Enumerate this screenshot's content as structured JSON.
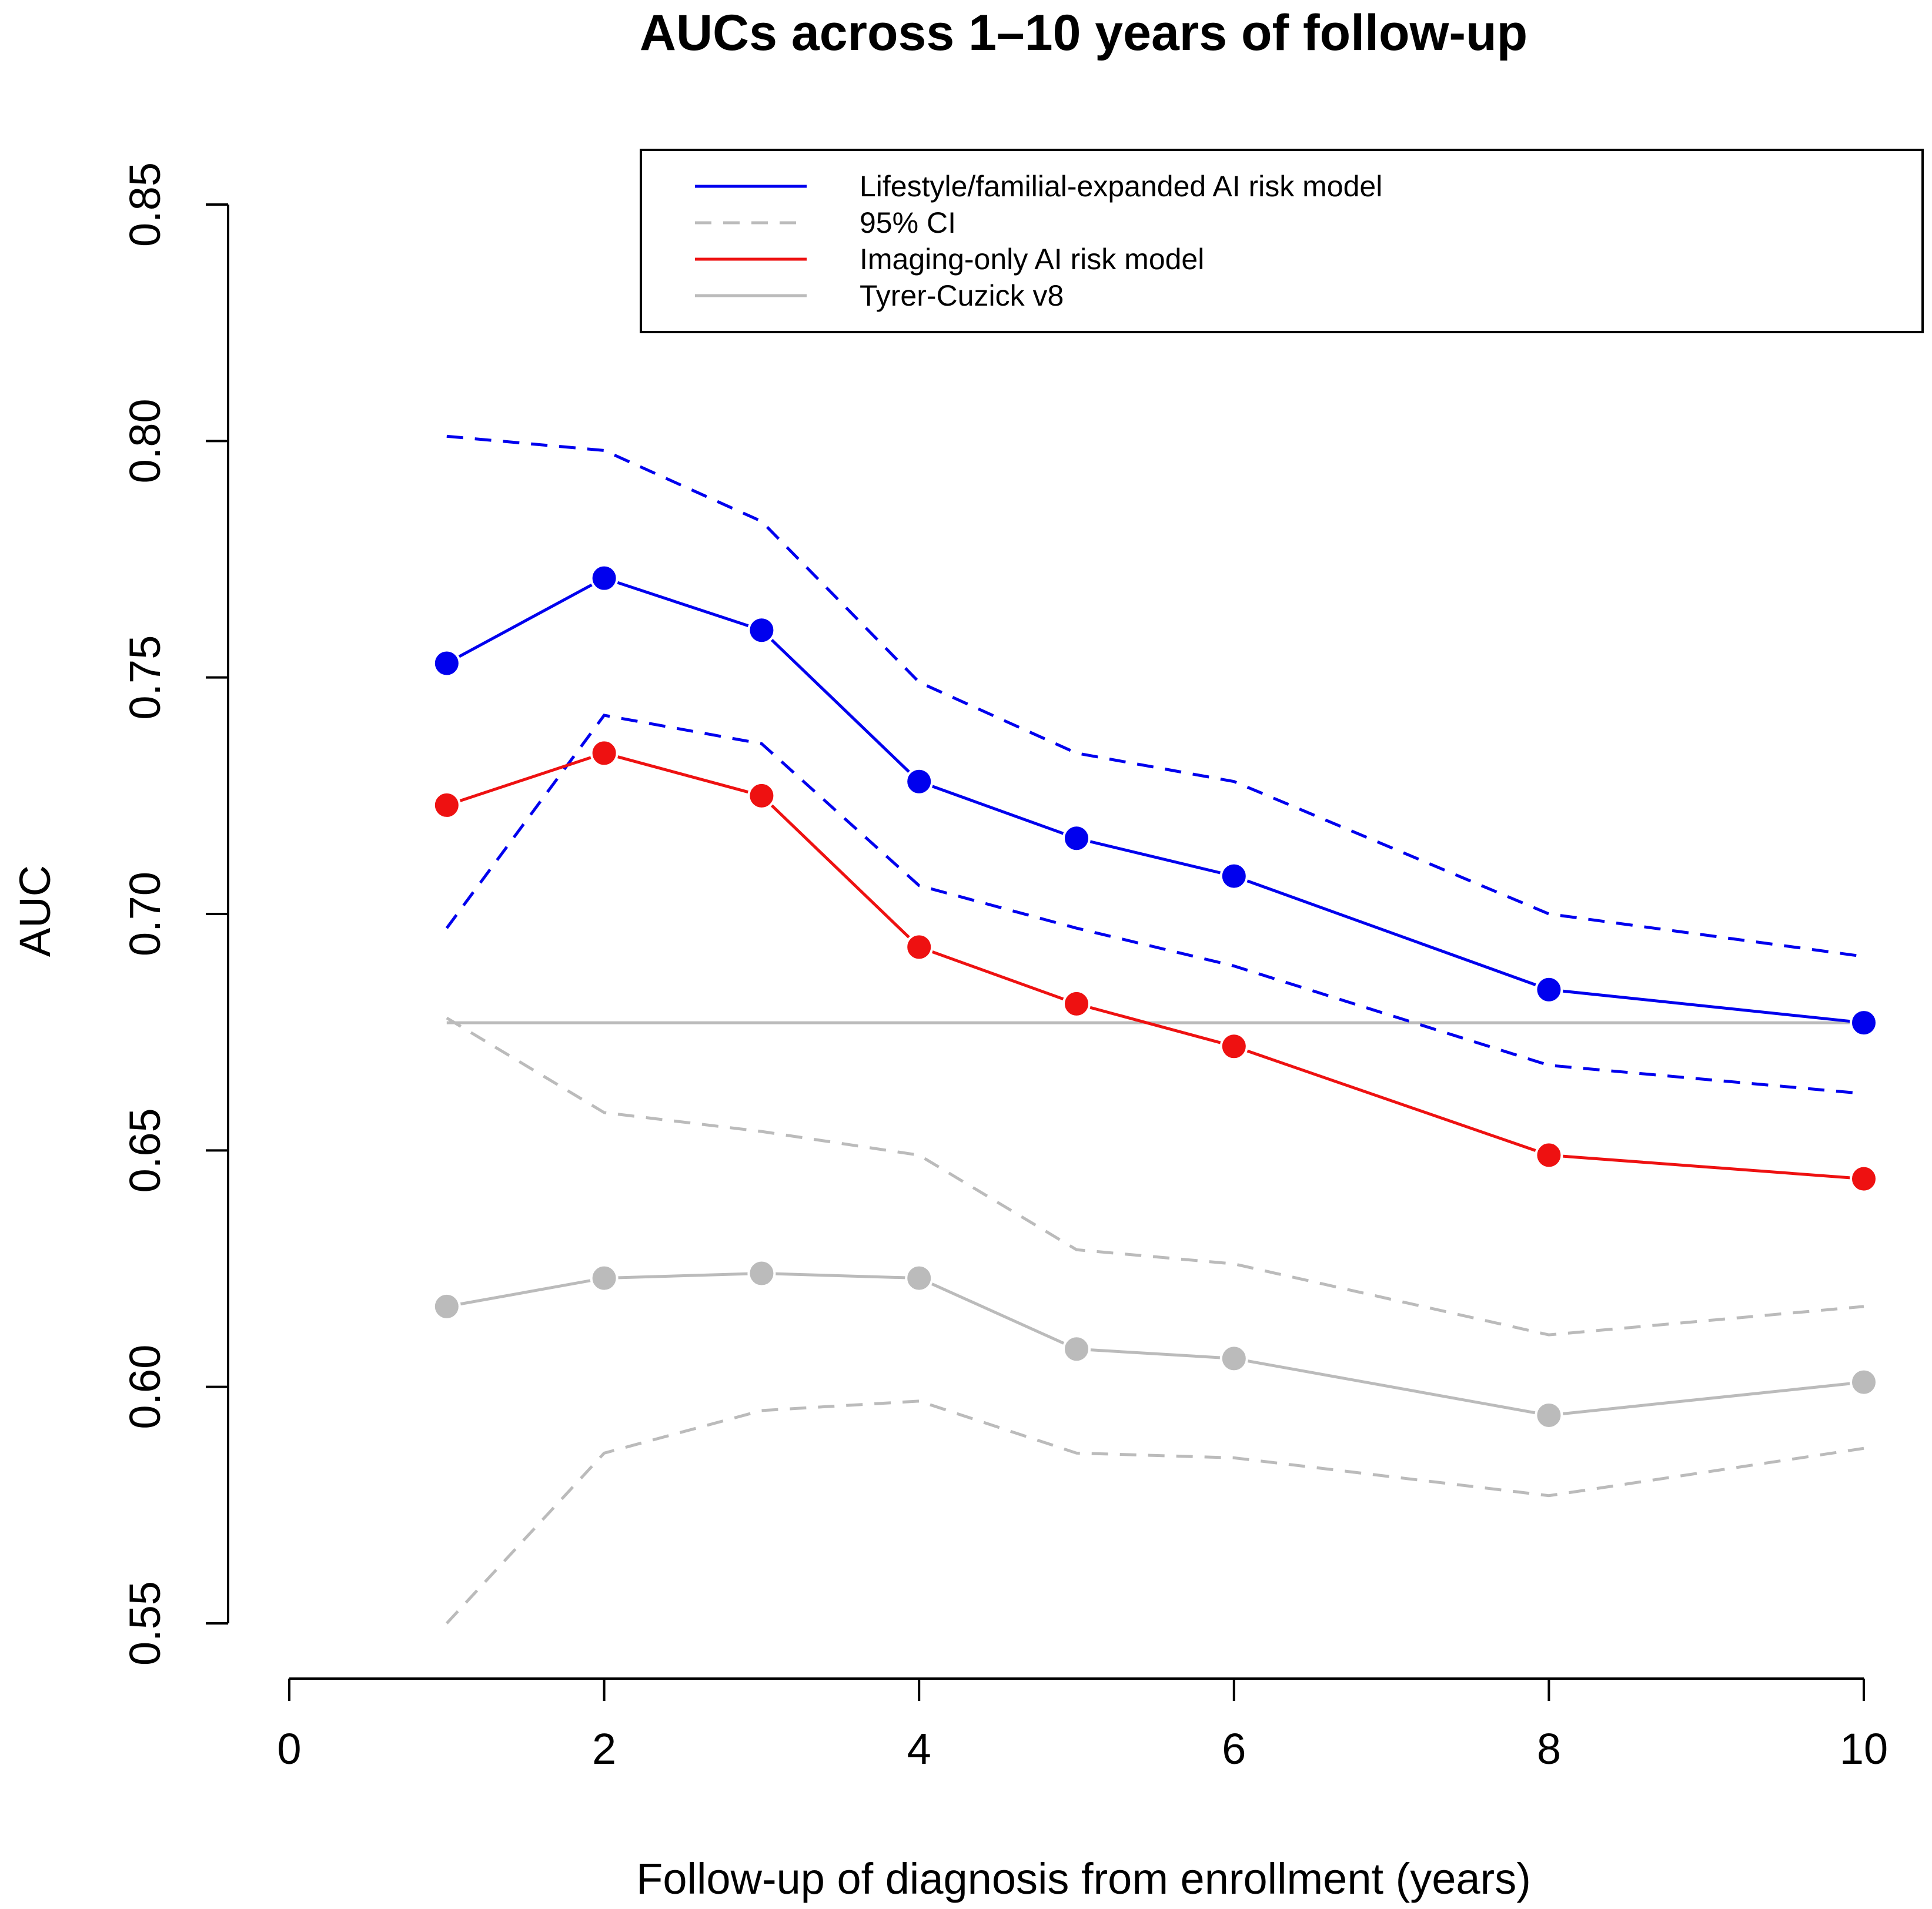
{
  "chart_data": {
    "type": "line",
    "title": "AUCs across 1–10 years of follow-up",
    "xlabel": "Follow-up of diagnosis from enrollment (years)",
    "ylabel": "AUC",
    "xlim": [
      0,
      10
    ],
    "ylim": [
      0.55,
      0.85
    ],
    "x_ticks": [
      0,
      2,
      4,
      6,
      8,
      10
    ],
    "x_tick_labels": [
      "0",
      "2",
      "4",
      "6",
      "8",
      "10"
    ],
    "y_ticks": [
      0.55,
      0.6,
      0.65,
      0.7,
      0.75,
      0.8,
      0.85
    ],
    "y_tick_labels": [
      "0.55",
      "0.60",
      "0.65",
      "0.70",
      "0.75",
      "0.80",
      "0.85"
    ],
    "grid": false,
    "legend_position": "top-right",
    "x": [
      1,
      2,
      3,
      4,
      5,
      6,
      8,
      10
    ],
    "series": [
      {
        "name": "Lifestyle/familial-expanded AI risk model",
        "color": "#0000ee",
        "values": [
          0.753,
          0.771,
          0.76,
          0.728,
          0.716,
          0.708,
          0.684,
          0.677
        ],
        "ci_lower": [
          0.697,
          0.742,
          0.736,
          0.706,
          0.697,
          0.689,
          0.668,
          0.662
        ],
        "ci_upper": [
          0.801,
          0.798,
          0.783,
          0.749,
          0.734,
          0.728,
          0.7,
          0.691
        ]
      },
      {
        "name": "Imaging-only AI risk model",
        "color": "#ee1111",
        "values": [
          0.723,
          0.734,
          0.725,
          0.693,
          0.681,
          0.672,
          0.649,
          0.644
        ]
      },
      {
        "name": "Tyrer-Cuzick v8",
        "color": "#bbbbbb",
        "values": [
          0.617,
          0.623,
          0.624,
          0.623,
          0.608,
          0.606,
          0.594,
          0.601
        ],
        "ci_lower": [
          0.55,
          0.586,
          0.595,
          0.597,
          0.586,
          0.585,
          0.577,
          0.587
        ],
        "ci_upper": [
          0.678,
          0.658,
          0.654,
          0.649,
          0.629,
          0.626,
          0.611,
          0.617
        ]
      }
    ],
    "reference_line": {
      "name": "Tyrer-Cuzick v8 reference",
      "y": 0.677,
      "x_range": [
        1,
        10
      ],
      "color": "#bbbbbb"
    },
    "legend": [
      {
        "label": "Lifestyle/familial-expanded AI risk model",
        "style": "solid",
        "color": "#0000ee"
      },
      {
        "label": "95% CI",
        "style": "dashed",
        "color": "#bbbbbb"
      },
      {
        "label": "Imaging-only AI risk model",
        "style": "solid",
        "color": "#ee1111"
      },
      {
        "label": "Tyrer-Cuzick v8",
        "style": "solid",
        "color": "#bbbbbb"
      }
    ]
  }
}
